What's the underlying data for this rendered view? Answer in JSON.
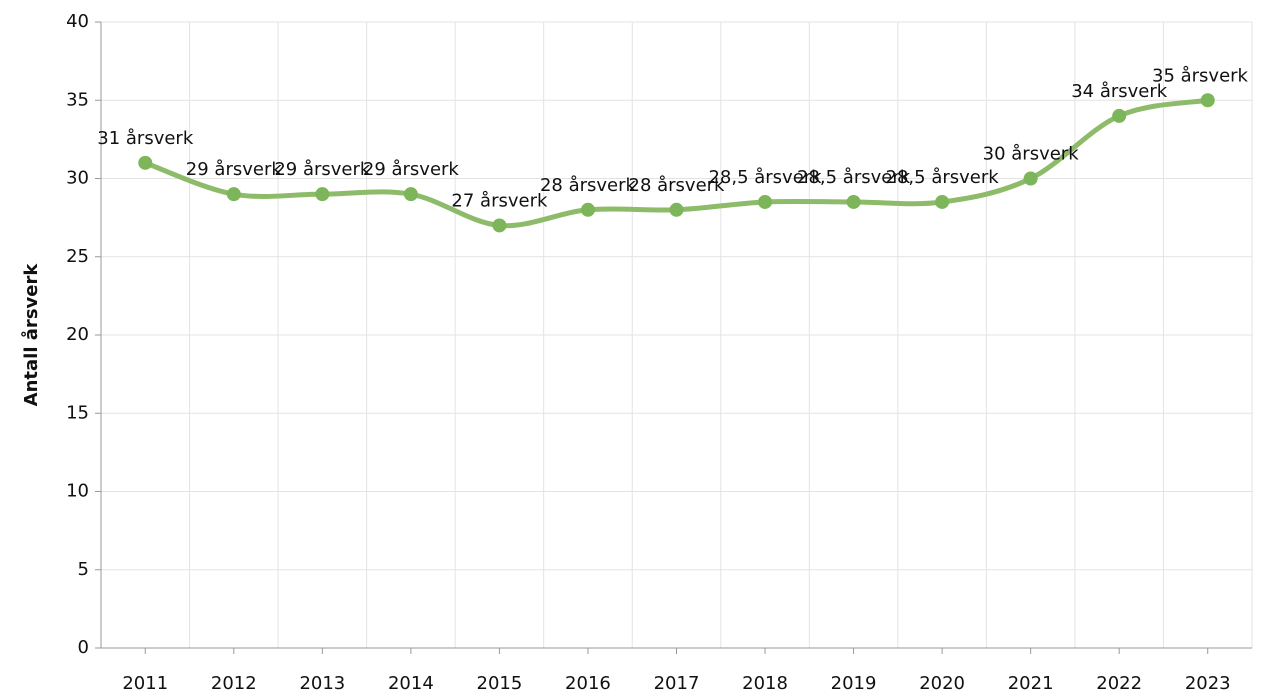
{
  "chart_data": {
    "type": "line",
    "y_label": "Antall årsverk",
    "categories": [
      "2011",
      "2012",
      "2013",
      "2014",
      "2015",
      "2016",
      "2017",
      "2018",
      "2019",
      "2020",
      "2021",
      "2022",
      "2023"
    ],
    "values": [
      31,
      29,
      29,
      29,
      27,
      28,
      28,
      28.5,
      28.5,
      28.5,
      30,
      34,
      35
    ],
    "value_labels": [
      "31 årsverk",
      "29 årsverk",
      "29 årsverk",
      "29 årsverk",
      "27 årsverk",
      "28 årsverk",
      "28 årsverk",
      "28,5 årsverk",
      "28,5 årsverk",
      "28,5 årsverk",
      "30 årsverk",
      "34 årsverk",
      "35 årsverk"
    ],
    "color": "#8dbb6a",
    "marker_color": "#7cb55a",
    "ylim": [
      0,
      40
    ],
    "yticks": [
      0,
      5,
      10,
      15,
      20,
      25,
      30,
      35,
      40
    ],
    "grid": true,
    "smooth": true
  }
}
